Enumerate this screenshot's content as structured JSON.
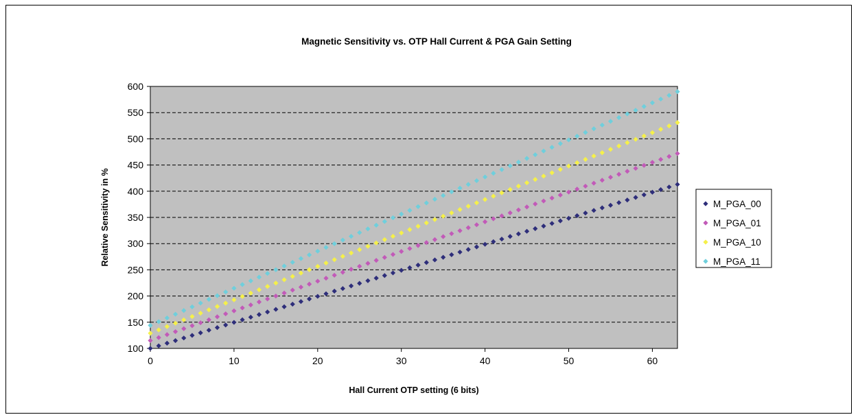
{
  "chart_data": {
    "type": "scatter",
    "title": "Magnetic Sensitivity vs. OTP Hall Current & PGA Gain Setting",
    "xlabel": "Hall Current OTP setting (6 bits)",
    "ylabel": "Relative Sensitivity in %",
    "xlim": [
      0,
      63
    ],
    "ylim": [
      100,
      600
    ],
    "xticks": [
      0,
      10,
      20,
      30,
      40,
      50,
      60
    ],
    "yticks": [
      100,
      150,
      200,
      250,
      300,
      350,
      400,
      450,
      500,
      550,
      600
    ],
    "grid": "horizontal dashed",
    "legend_position": "right",
    "plot_background": "#c0c0c0",
    "x": {
      "start": 0,
      "end": 63,
      "step": 1
    },
    "series": [
      {
        "name": "M_PGA_00",
        "color": "#2e2e7a",
        "marker": "diamond",
        "y_start": 100,
        "y_end": 413
      },
      {
        "name": "M_PGA_01",
        "color": "#c25ab8",
        "marker": "diamond",
        "y_start": 115,
        "y_end": 472
      },
      {
        "name": "M_PGA_10",
        "color": "#f5f04a",
        "marker": "diamond",
        "y_start": 129,
        "y_end": 531
      },
      {
        "name": "M_PGA_11",
        "color": "#6fcfdc",
        "marker": "diamond",
        "y_start": 144,
        "y_end": 590
      }
    ]
  }
}
